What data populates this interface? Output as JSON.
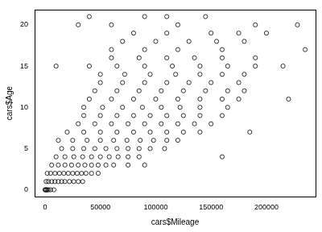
{
  "chart_data": {
    "type": "scatter",
    "x_label": "cars$Mileage",
    "y_label": "cars$Age",
    "x": [
      0,
      500,
      1000,
      2000,
      3000,
      5000,
      8000,
      1000,
      3000,
      6000,
      9000,
      12000,
      15000,
      18000,
      22000,
      26000,
      30000,
      34000,
      2000,
      5000,
      9000,
      13000,
      17000,
      21000,
      25000,
      29000,
      33000,
      37000,
      42000,
      48000,
      6000,
      12000,
      18000,
      24000,
      30000,
      36000,
      42000,
      48000,
      55000,
      62000,
      75000,
      90000,
      10000,
      18000,
      26000,
      34000,
      42000,
      50000,
      58000,
      66000,
      75000,
      85000,
      160000,
      15000,
      25000,
      35000,
      45000,
      55000,
      65000,
      75000,
      85000,
      95000,
      108000,
      12000,
      25000,
      38000,
      50000,
      62000,
      74000,
      86000,
      98000,
      110000,
      120000,
      20000,
      35000,
      50000,
      65000,
      80000,
      95000,
      110000,
      125000,
      140000,
      185000,
      30000,
      45000,
      60000,
      75000,
      90000,
      105000,
      120000,
      135000,
      150000,
      35000,
      50000,
      65000,
      80000,
      95000,
      110000,
      125000,
      140000,
      160000,
      35000,
      52000,
      70000,
      88000,
      105000,
      122000,
      140000,
      165000,
      40000,
      60000,
      80000,
      100000,
      120000,
      140000,
      160000,
      175000,
      220000,
      45000,
      65000,
      85000,
      105000,
      125000,
      145000,
      165000,
      180000,
      50000,
      70000,
      90000,
      110000,
      130000,
      150000,
      175000,
      50000,
      72000,
      95000,
      118000,
      140000,
      160000,
      180000,
      10000,
      40000,
      65000,
      90000,
      115000,
      140000,
      165000,
      190000,
      215000,
      60000,
      85000,
      110000,
      135000,
      160000,
      190000,
      60000,
      90000,
      120000,
      160000,
      235000,
      70000,
      100000,
      130000,
      155000,
      180000,
      80000,
      110000,
      150000,
      175000,
      200000,
      30000,
      60000,
      120000,
      190000,
      228000,
      40000,
      90000,
      110000,
      145000
    ],
    "values": [
      0,
      0,
      0,
      0,
      0,
      0,
      0,
      1,
      1,
      1,
      1,
      1,
      1,
      1,
      1,
      1,
      1,
      1,
      2,
      2,
      2,
      2,
      2,
      2,
      2,
      2,
      2,
      2,
      2,
      2,
      3,
      3,
      3,
      3,
      3,
      3,
      3,
      3,
      3,
      3,
      3,
      3,
      4,
      4,
      4,
      4,
      4,
      4,
      4,
      4,
      4,
      4,
      4,
      5,
      5,
      5,
      5,
      5,
      5,
      5,
      5,
      5,
      5,
      6,
      6,
      6,
      6,
      6,
      6,
      6,
      6,
      6,
      6,
      7,
      7,
      7,
      7,
      7,
      7,
      7,
      7,
      7,
      7,
      8,
      8,
      8,
      8,
      8,
      8,
      8,
      8,
      8,
      9,
      9,
      9,
      9,
      9,
      9,
      9,
      9,
      9,
      10,
      10,
      10,
      10,
      10,
      10,
      10,
      10,
      11,
      11,
      11,
      11,
      11,
      11,
      11,
      11,
      11,
      12,
      12,
      12,
      12,
      12,
      12,
      12,
      12,
      13,
      13,
      13,
      13,
      13,
      13,
      13,
      14,
      14,
      14,
      14,
      14,
      14,
      14,
      15,
      15,
      15,
      15,
      15,
      15,
      15,
      15,
      15,
      16,
      16,
      16,
      16,
      16,
      16,
      17,
      17,
      17,
      17,
      17,
      18,
      18,
      18,
      18,
      18,
      19,
      19,
      19,
      19,
      19,
      20,
      20,
      20,
      20,
      20,
      21,
      21,
      21,
      21
    ],
    "color": "#000000",
    "marker": "circle",
    "xlim": [
      -9400,
      244400
    ],
    "xticks": [
      0,
      50000,
      100000,
      150000,
      200000
    ],
    "ylim": [
      -0.84,
      21.84
    ],
    "yticks": [
      0,
      5,
      10,
      15,
      20
    ],
    "grid": false
  }
}
